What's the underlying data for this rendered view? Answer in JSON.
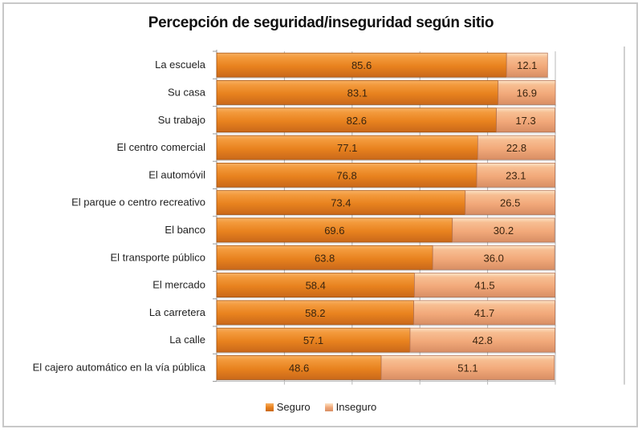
{
  "chart_data": {
    "type": "bar",
    "orientation": "horizontal",
    "stacked": true,
    "title": "Percepción de seguridad/inseguridad según sitio",
    "xlabel": "",
    "ylabel": "",
    "xlim": [
      0,
      100
    ],
    "x_gridlines": [
      0,
      20,
      40,
      60,
      80,
      100
    ],
    "grid": true,
    "legend_position": "bottom",
    "categories": [
      "La escuela",
      "Su casa",
      "Su trabajo",
      "El centro comercial",
      "El automóvil",
      "El parque o centro recreativo",
      "El banco",
      "El transporte público",
      "El mercado",
      "La carretera",
      "La calle",
      "El cajero automático  en la vía pública"
    ],
    "series": [
      {
        "name": "Seguro",
        "color": "#E8821E",
        "values": [
          85.6,
          83.1,
          82.6,
          77.1,
          76.8,
          73.4,
          69.6,
          63.8,
          58.4,
          58.2,
          57.1,
          48.6
        ],
        "labels": [
          "85.6",
          "83.1",
          "82.6",
          "77.1",
          "76.8",
          "73.4",
          "69.6",
          "63.8",
          "58.4",
          "58.2",
          "57.1",
          "48.6"
        ]
      },
      {
        "name": "Inseguro",
        "color": "#F2A97A",
        "values": [
          12.1,
          16.9,
          17.3,
          22.8,
          23.1,
          26.5,
          30.2,
          36.0,
          41.5,
          41.7,
          42.8,
          51.1
        ],
        "labels": [
          "12.1",
          "16.9",
          "17.3",
          "22.8",
          "23.1",
          "26.5",
          "30.2",
          "36.0",
          "41.5",
          "41.7",
          "42.8",
          "51.1"
        ]
      }
    ]
  }
}
